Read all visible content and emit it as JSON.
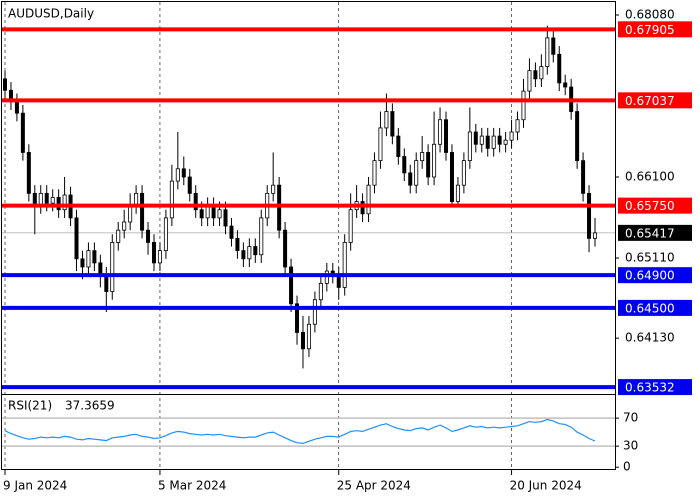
{
  "chart_data": [
    {
      "type": "candlestick",
      "title": "AUDUSD,Daily",
      "open": [
        0.673,
        0.6716,
        0.6702,
        0.6688,
        0.664,
        0.659,
        0.6575,
        0.659,
        0.6578,
        0.6585,
        0.657,
        0.6588,
        0.656,
        0.651,
        0.65,
        0.652,
        0.6505,
        0.649,
        0.647,
        0.653,
        0.6545,
        0.6555,
        0.6575,
        0.659,
        0.6545,
        0.653,
        0.6505,
        0.652,
        0.656,
        0.6605,
        0.662,
        0.661,
        0.659,
        0.657,
        0.656,
        0.6575,
        0.656,
        0.657,
        0.655,
        0.6535,
        0.652,
        0.651,
        0.6525,
        0.6515,
        0.656,
        0.659,
        0.66,
        0.6545,
        0.65,
        0.6455,
        0.642,
        0.64,
        0.643,
        0.646,
        0.648,
        0.6495,
        0.649,
        0.6475,
        0.653,
        0.657,
        0.658,
        0.6565,
        0.66,
        0.663,
        0.667,
        0.669,
        0.666,
        0.6635,
        0.6615,
        0.66,
        0.663,
        0.664,
        0.661,
        0.665,
        0.668,
        0.664,
        0.658,
        0.66,
        0.663,
        0.6665,
        0.665,
        0.666,
        0.6645,
        0.666,
        0.665,
        0.6655,
        0.6665,
        0.668,
        0.6715,
        0.674,
        0.673,
        0.6745,
        0.678,
        0.676,
        0.6725,
        0.672,
        0.669,
        0.663,
        0.659,
        0.6535
      ],
      "high": [
        0.674,
        0.6726,
        0.6712,
        0.6698,
        0.665,
        0.66,
        0.66,
        0.66,
        0.6595,
        0.6595,
        0.661,
        0.6598,
        0.657,
        0.652,
        0.653,
        0.653,
        0.6515,
        0.65,
        0.654,
        0.6555,
        0.657,
        0.659,
        0.66,
        0.66,
        0.6555,
        0.654,
        0.653,
        0.657,
        0.6625,
        0.6665,
        0.6635,
        0.662,
        0.66,
        0.658,
        0.6585,
        0.6585,
        0.658,
        0.658,
        0.656,
        0.6545,
        0.653,
        0.6535,
        0.6535,
        0.657,
        0.66,
        0.664,
        0.661,
        0.6555,
        0.651,
        0.6465,
        0.644,
        0.644,
        0.647,
        0.649,
        0.6505,
        0.6505,
        0.65,
        0.654,
        0.659,
        0.66,
        0.659,
        0.661,
        0.664,
        0.669,
        0.6712,
        0.67,
        0.667,
        0.6645,
        0.6625,
        0.664,
        0.666,
        0.665,
        0.669,
        0.6695,
        0.669,
        0.665,
        0.661,
        0.664,
        0.6695,
        0.6675,
        0.667,
        0.667,
        0.667,
        0.667,
        0.6665,
        0.668,
        0.669,
        0.673,
        0.6755,
        0.675,
        0.676,
        0.6795,
        0.679,
        0.677,
        0.6735,
        0.673,
        0.67,
        0.664,
        0.66,
        0.656
      ],
      "low": [
        0.6706,
        0.6692,
        0.6678,
        0.663,
        0.658,
        0.654,
        0.6565,
        0.6568,
        0.6568,
        0.656,
        0.656,
        0.655,
        0.6495,
        0.6485,
        0.649,
        0.6495,
        0.6475,
        0.6445,
        0.646,
        0.652,
        0.6535,
        0.6545,
        0.6565,
        0.6535,
        0.6515,
        0.6495,
        0.6495,
        0.651,
        0.655,
        0.6595,
        0.66,
        0.658,
        0.656,
        0.655,
        0.655,
        0.655,
        0.655,
        0.654,
        0.6525,
        0.651,
        0.65,
        0.65,
        0.6505,
        0.6505,
        0.655,
        0.658,
        0.6535,
        0.649,
        0.6445,
        0.6405,
        0.6376,
        0.639,
        0.642,
        0.645,
        0.647,
        0.648,
        0.646,
        0.6465,
        0.652,
        0.656,
        0.6555,
        0.6555,
        0.659,
        0.662,
        0.666,
        0.665,
        0.6625,
        0.6605,
        0.659,
        0.659,
        0.662,
        0.66,
        0.66,
        0.664,
        0.663,
        0.6575,
        0.6575,
        0.659,
        0.662,
        0.664,
        0.664,
        0.6635,
        0.6635,
        0.664,
        0.664,
        0.6645,
        0.6655,
        0.667,
        0.6705,
        0.672,
        0.672,
        0.6735,
        0.675,
        0.6715,
        0.671,
        0.668,
        0.662,
        0.658,
        0.6518,
        0.6525
      ],
      "close": [
        0.6716,
        0.6702,
        0.6688,
        0.664,
        0.659,
        0.6575,
        0.659,
        0.6578,
        0.6585,
        0.657,
        0.6588,
        0.656,
        0.651,
        0.65,
        0.652,
        0.6505,
        0.649,
        0.647,
        0.653,
        0.6545,
        0.6555,
        0.6575,
        0.659,
        0.6545,
        0.653,
        0.6505,
        0.652,
        0.656,
        0.6605,
        0.662,
        0.661,
        0.659,
        0.657,
        0.656,
        0.6575,
        0.656,
        0.657,
        0.655,
        0.6535,
        0.652,
        0.651,
        0.6525,
        0.6515,
        0.656,
        0.659,
        0.66,
        0.6545,
        0.65,
        0.6455,
        0.642,
        0.64,
        0.643,
        0.646,
        0.648,
        0.6495,
        0.649,
        0.6475,
        0.653,
        0.657,
        0.658,
        0.6565,
        0.66,
        0.663,
        0.667,
        0.669,
        0.666,
        0.6635,
        0.6615,
        0.66,
        0.663,
        0.664,
        0.661,
        0.665,
        0.668,
        0.664,
        0.658,
        0.66,
        0.663,
        0.6665,
        0.665,
        0.666,
        0.6645,
        0.666,
        0.665,
        0.6655,
        0.6665,
        0.668,
        0.6715,
        0.674,
        0.673,
        0.6745,
        0.678,
        0.676,
        0.6725,
        0.672,
        0.669,
        0.663,
        0.659,
        0.6535,
        0.65417
      ],
      "ylim": [
        0.63472,
        0.68239
      ],
      "yticks": [
        {
          "value": 0.6808,
          "label": "0.68080"
        },
        {
          "value": 0.661,
          "label": "0.66100"
        },
        {
          "value": 0.6511,
          "label": "0.65110"
        },
        {
          "value": 0.6413,
          "label": "0.64130"
        }
      ],
      "levels": [
        {
          "value": 0.67905,
          "color": "#ff0000"
        },
        {
          "value": 0.67037,
          "color": "#ff0000"
        },
        {
          "value": 0.6575,
          "label": "0.65750",
          "color": "#ff0000"
        },
        {
          "value": 0.649,
          "label": "0.64900",
          "color": "#0000ee"
        },
        {
          "value": 0.645,
          "label": "0.64500",
          "color": "#0000ee"
        },
        {
          "value": 0.63532,
          "color": "#0000ee"
        }
      ],
      "last": 0.65417,
      "xticks": [
        {
          "value": 0,
          "label": "9 Jan 2024"
        },
        {
          "value": 26,
          "label": "5 Mar 2024"
        },
        {
          "value": 56,
          "label": "25 Apr 2024"
        },
        {
          "value": 85,
          "label": "20 Jun 2024"
        }
      ],
      "grid": true
    },
    {
      "type": "line",
      "series": [
        {
          "name": "RSI(21)",
          "color": "#1e90ff",
          "values": [
            52,
            48,
            45,
            42,
            40,
            41,
            43,
            42,
            43,
            42,
            44,
            43,
            40,
            39,
            41,
            40,
            39,
            38,
            42,
            43,
            44,
            46,
            47,
            44,
            43,
            41,
            42,
            45,
            49,
            51,
            50,
            48,
            47,
            46,
            47,
            46,
            47,
            45,
            44,
            43,
            42,
            43,
            43,
            46,
            49,
            50,
            46,
            42,
            38,
            35,
            34,
            37,
            40,
            42,
            44,
            44,
            43,
            47,
            51,
            52,
            51,
            54,
            57,
            60,
            62,
            58,
            55,
            53,
            52,
            55,
            56,
            53,
            57,
            60,
            56,
            51,
            53,
            56,
            59,
            57,
            58,
            56,
            57,
            56,
            57,
            58,
            59,
            62,
            65,
            64,
            65,
            68,
            66,
            62,
            61,
            57,
            50,
            46,
            41,
            37.3659
          ]
        }
      ],
      "ylim": [
        -4,
        103
      ],
      "yticks": [
        70,
        30,
        0
      ]
    }
  ]
}
